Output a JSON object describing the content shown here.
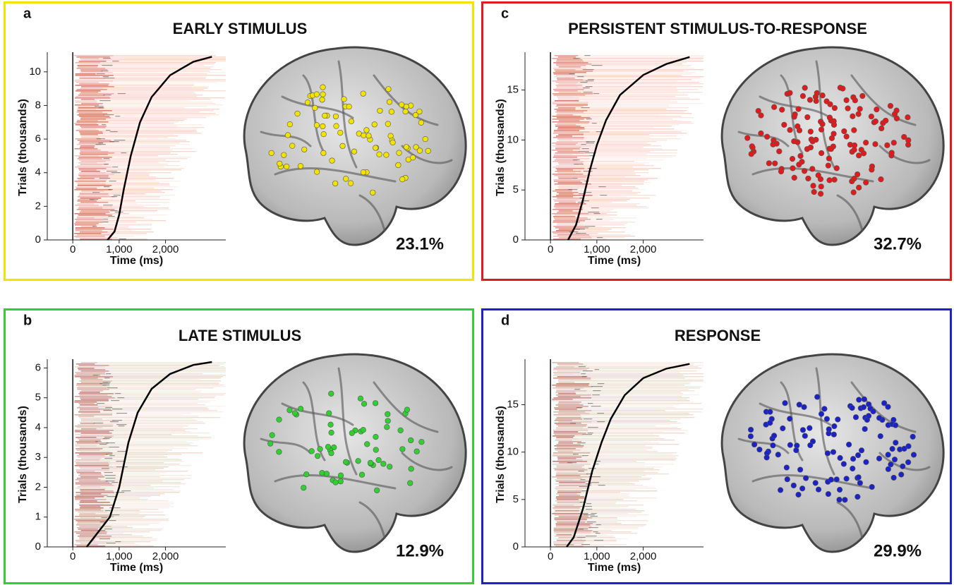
{
  "chart_data": [
    {
      "type": "raster",
      "panel": "a",
      "title": "EARLY STIMULUS",
      "color": "#f2e300",
      "xlabel": "Time (ms)",
      "ylabel": "Trials (thousands)",
      "annotation": "23.1%",
      "xlim": [
        -550,
        3300
      ],
      "xticks": [
        0,
        {
          "value": 1000,
          "label": "1,000"
        },
        {
          "value": 2000,
          "label": "2,000"
        }
      ],
      "ylim": [
        0,
        11
      ],
      "yticks": [
        0,
        2,
        4,
        6,
        8,
        10
      ],
      "x": [
        750,
        900,
        1000,
        1100,
        1250,
        1450,
        1700,
        2100,
        2600,
        3000
      ],
      "values": [
        0,
        0.5,
        1.5,
        3,
        5,
        7,
        8.5,
        9.8,
        10.6,
        10.9
      ]
    },
    {
      "type": "raster",
      "panel": "b",
      "title": "LATE STIMULUS",
      "color": "#2fd12f",
      "xlabel": "Time (ms)",
      "ylabel": "Trials (thousands)",
      "annotation": "12.9%",
      "xlim": [
        -550,
        3300
      ],
      "xticks": [
        0,
        {
          "value": 1000,
          "label": "1,000"
        },
        {
          "value": 2000,
          "label": "2,000"
        }
      ],
      "ylim": [
        0,
        6.2
      ],
      "yticks": [
        0,
        1,
        2,
        3,
        4,
        5,
        6
      ],
      "x": [
        300,
        500,
        800,
        1000,
        1200,
        1400,
        1700,
        2100,
        2600,
        3000
      ],
      "values": [
        0,
        0.4,
        1,
        2,
        3.5,
        4.5,
        5.3,
        5.8,
        6.1,
        6.2
      ]
    },
    {
      "type": "raster",
      "panel": "c",
      "title": "PERSISTENT STIMULUS-TO-RESPONSE",
      "color": "#e01b1b",
      "xlabel": "Time (ms)",
      "ylabel": "Trials (thousands)",
      "annotation": "32.7%",
      "xlim": [
        -550,
        3300
      ],
      "xticks": [
        0,
        {
          "value": 1000,
          "label": "1,000"
        },
        {
          "value": 2000,
          "label": "2,000"
        }
      ],
      "ylim": [
        0,
        18.5
      ],
      "yticks": [
        0,
        5,
        10,
        15
      ],
      "x": [
        380,
        550,
        700,
        850,
        1000,
        1200,
        1500,
        2000,
        2500,
        3000
      ],
      "values": [
        0,
        1.5,
        4,
        7,
        9.5,
        12,
        14.5,
        16.5,
        17.6,
        18.3
      ]
    },
    {
      "type": "raster",
      "panel": "d",
      "title": "RESPONSE",
      "color": "#1a22c8",
      "xlabel": "Time (ms)",
      "ylabel": "Trials (thousands)",
      "annotation": "29.9%",
      "xlim": [
        -550,
        3300
      ],
      "xticks": [
        0,
        {
          "value": 1000,
          "label": "1,000"
        },
        {
          "value": 2000,
          "label": "2,000"
        }
      ],
      "ylim": [
        0,
        19.5
      ],
      "yticks": [
        0,
        5,
        10,
        15
      ],
      "x": [
        350,
        500,
        700,
        900,
        1100,
        1300,
        1600,
        2000,
        2500,
        3000
      ],
      "values": [
        0,
        1,
        4,
        8,
        11,
        13.5,
        16,
        17.8,
        18.8,
        19.3
      ]
    }
  ]
}
